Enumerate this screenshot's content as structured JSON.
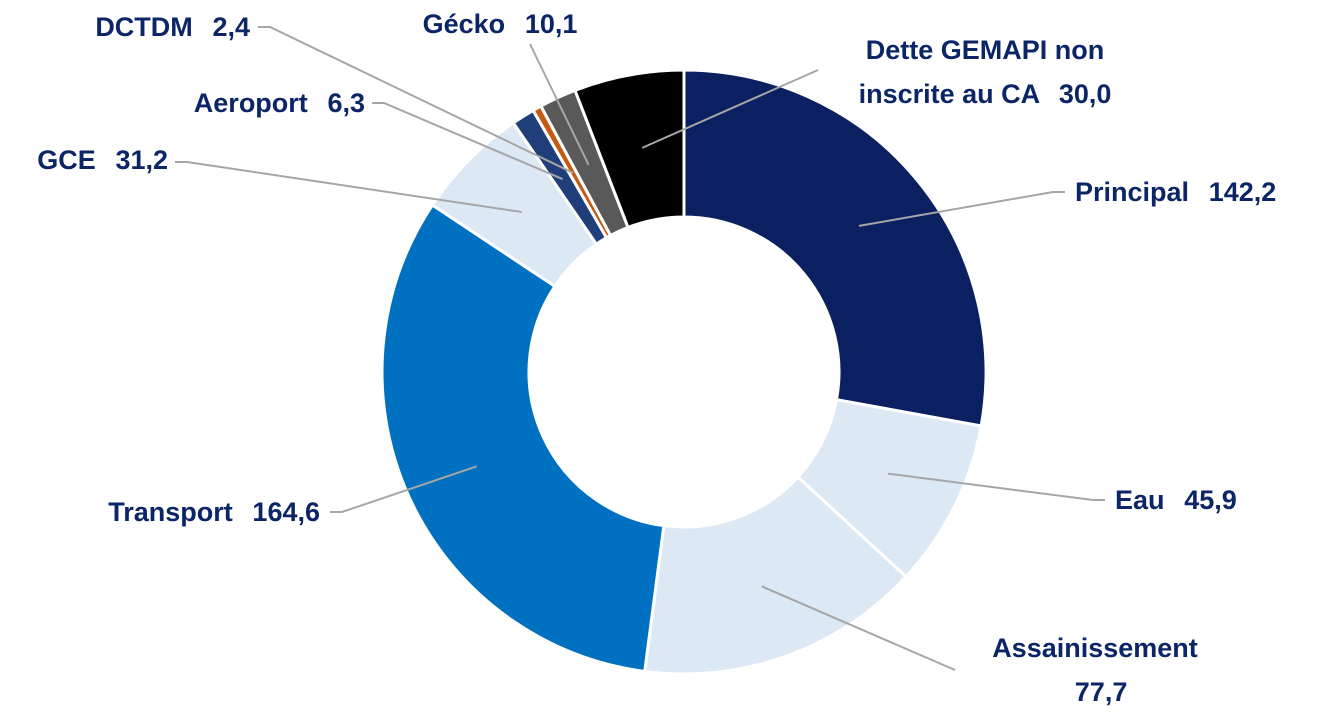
{
  "chart_data": {
    "type": "donut",
    "categories": [
      "Principal",
      "Eau",
      "Assainissement",
      "Transport",
      "GCE",
      "Aeroport",
      "DCTDM",
      "Gécko",
      "Dette GEMAPI non inscrite au CA"
    ],
    "values": [
      142.2,
      45.9,
      77.7,
      164.6,
      31.2,
      6.3,
      2.4,
      10.1,
      30.0
    ],
    "value_labels": [
      "142,2",
      "45,9",
      "77,7",
      "164,6",
      "31,2",
      "6,3",
      "2,4",
      "10,1",
      "30,0"
    ],
    "colors": [
      "#0b2060",
      "#dde8f5",
      "#dde8f5",
      "#0070c0",
      "#dde8f5",
      "#203f7a",
      "#c55a11",
      "#595959",
      "#000000"
    ]
  }
}
